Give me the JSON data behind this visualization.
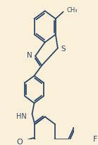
{
  "bg_color": "#faefd8",
  "bond_color": "#2d4a6b",
  "lw": 1.3,
  "figsize": [
    1.39,
    2.04
  ],
  "dpi": 100,
  "xlim": [
    0,
    139
  ],
  "ylim": [
    0,
    204
  ]
}
